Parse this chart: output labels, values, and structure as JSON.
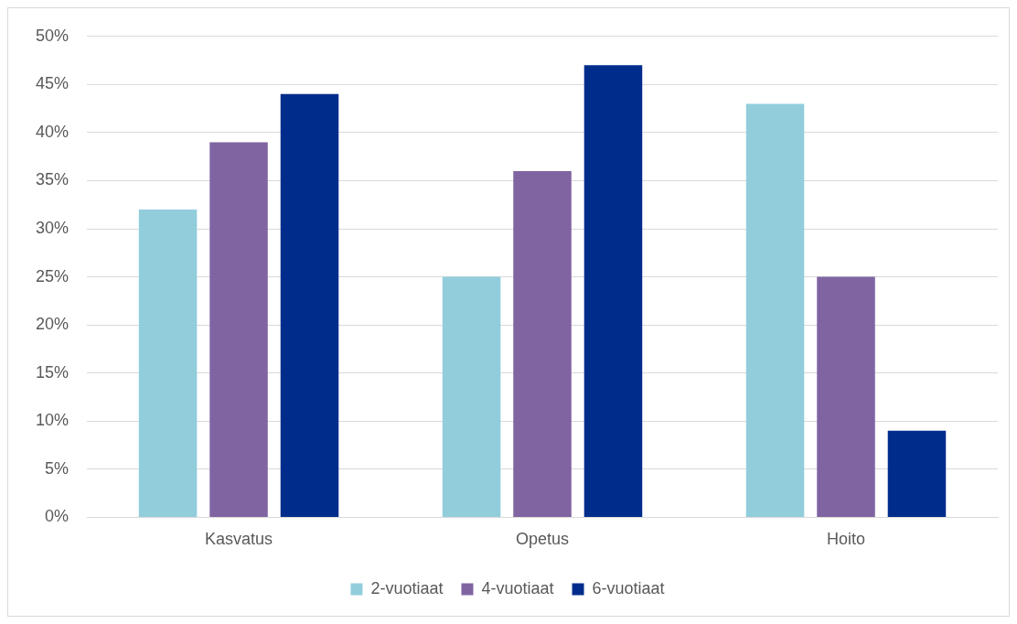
{
  "chart_data": {
    "type": "bar",
    "categories": [
      "Kasvatus",
      "Opetus",
      "Hoito"
    ],
    "series": [
      {
        "name": "2-vuotiaat",
        "color": "#92cddc",
        "values": [
          32,
          25,
          43
        ]
      },
      {
        "name": "4-vuotiaat",
        "color": "#8064a2",
        "values": [
          39,
          36,
          25
        ]
      },
      {
        "name": "6-vuotiaat",
        "color": "#002d8c",
        "values": [
          44,
          47,
          9
        ]
      }
    ],
    "ylim": [
      0,
      50
    ],
    "yticks": [
      {
        "value": 0,
        "label": "0%"
      },
      {
        "value": 5,
        "label": "5%"
      },
      {
        "value": 10,
        "label": "10%"
      },
      {
        "value": 15,
        "label": "15%"
      },
      {
        "value": 20,
        "label": "20%"
      },
      {
        "value": 25,
        "label": "25%"
      },
      {
        "value": 30,
        "label": "30%"
      },
      {
        "value": 35,
        "label": "35%"
      },
      {
        "value": 40,
        "label": "40%"
      },
      {
        "value": 45,
        "label": "45%"
      },
      {
        "value": 50,
        "label": "50%"
      }
    ],
    "grid": "y",
    "legend": "bottom"
  }
}
